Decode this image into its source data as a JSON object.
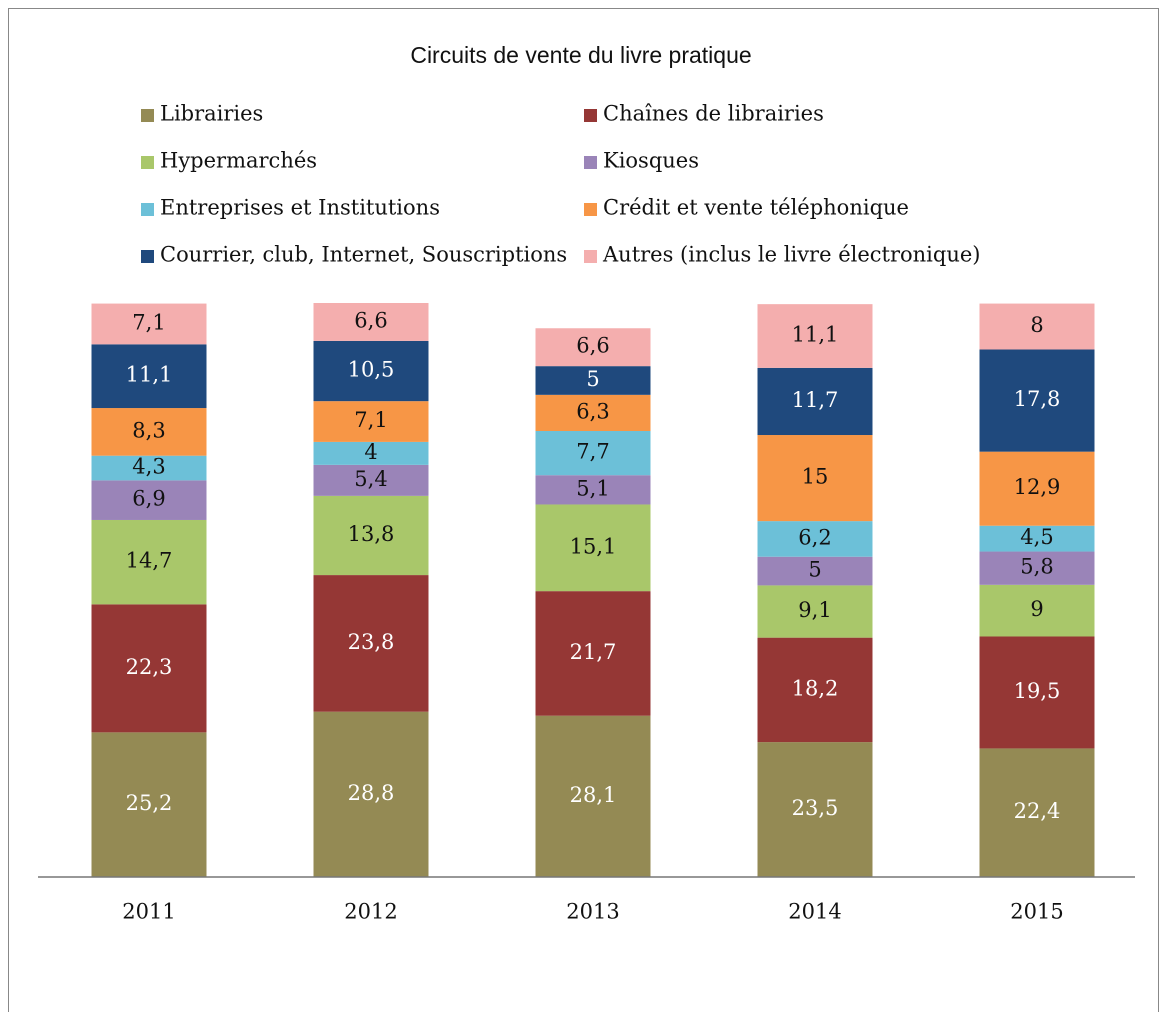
{
  "chart_data": {
    "type": "stacked_bar",
    "title": "Circuits de vente du livre pratique",
    "categories": [
      "2011",
      "2012",
      "2013",
      "2014",
      "2015"
    ],
    "ylim": [
      0,
      100
    ],
    "series": [
      {
        "name": "Librairies",
        "color": "#948a54",
        "values": [
          25.2,
          28.8,
          28.1,
          23.5,
          22.4
        ],
        "value_labels": [
          "25,2",
          "28,8",
          "28,1",
          "23,5",
          "22,4"
        ]
      },
      {
        "name": "Chaînes de librairies",
        "color": "#953735",
        "values": [
          22.3,
          23.8,
          21.7,
          18.2,
          19.5
        ],
        "value_labels": [
          "22,3",
          "23,8",
          "21,7",
          "18,2",
          "19,5"
        ]
      },
      {
        "name": "Hypermarchés",
        "color": "#a9c76a",
        "values": [
          14.7,
          13.8,
          15.1,
          9.1,
          9
        ],
        "value_labels": [
          "14,7",
          "13,8",
          "15,1",
          "9,1",
          "9"
        ]
      },
      {
        "name": "Kiosques",
        "color": "#9a84b8",
        "values": [
          6.9,
          5.4,
          5.1,
          5,
          5.8
        ],
        "value_labels": [
          "6,9",
          "5,4",
          "5,1",
          "5",
          "5,8"
        ]
      },
      {
        "name": "Entreprises et Institutions",
        "color": "#6cc0d8",
        "values": [
          4.3,
          4,
          7.7,
          6.2,
          4.5
        ],
        "value_labels": [
          "4,3",
          "4",
          "7,7",
          "6,2",
          "4,5"
        ]
      },
      {
        "name": "Crédit et vente téléphonique",
        "color": "#f79646",
        "values": [
          8.3,
          7.1,
          6.3,
          15,
          12.9
        ],
        "value_labels": [
          "8,3",
          "7,1",
          "6,3",
          "15",
          "12,9"
        ]
      },
      {
        "name": "Courrier, club, Internet, Souscriptions",
        "color": "#1f497d",
        "values": [
          11.1,
          10.5,
          5,
          11.7,
          17.8
        ],
        "value_labels": [
          "11,1",
          "10,5",
          "5",
          "11,7",
          "17,8"
        ]
      },
      {
        "name": "Autres (inclus le livre électronique)",
        "color": "#f4aeae",
        "values": [
          7.1,
          6.6,
          6.6,
          11.1,
          8
        ],
        "value_labels": [
          "7,1",
          "6,6",
          "6,6",
          "11,1",
          "8"
        ]
      }
    ]
  }
}
